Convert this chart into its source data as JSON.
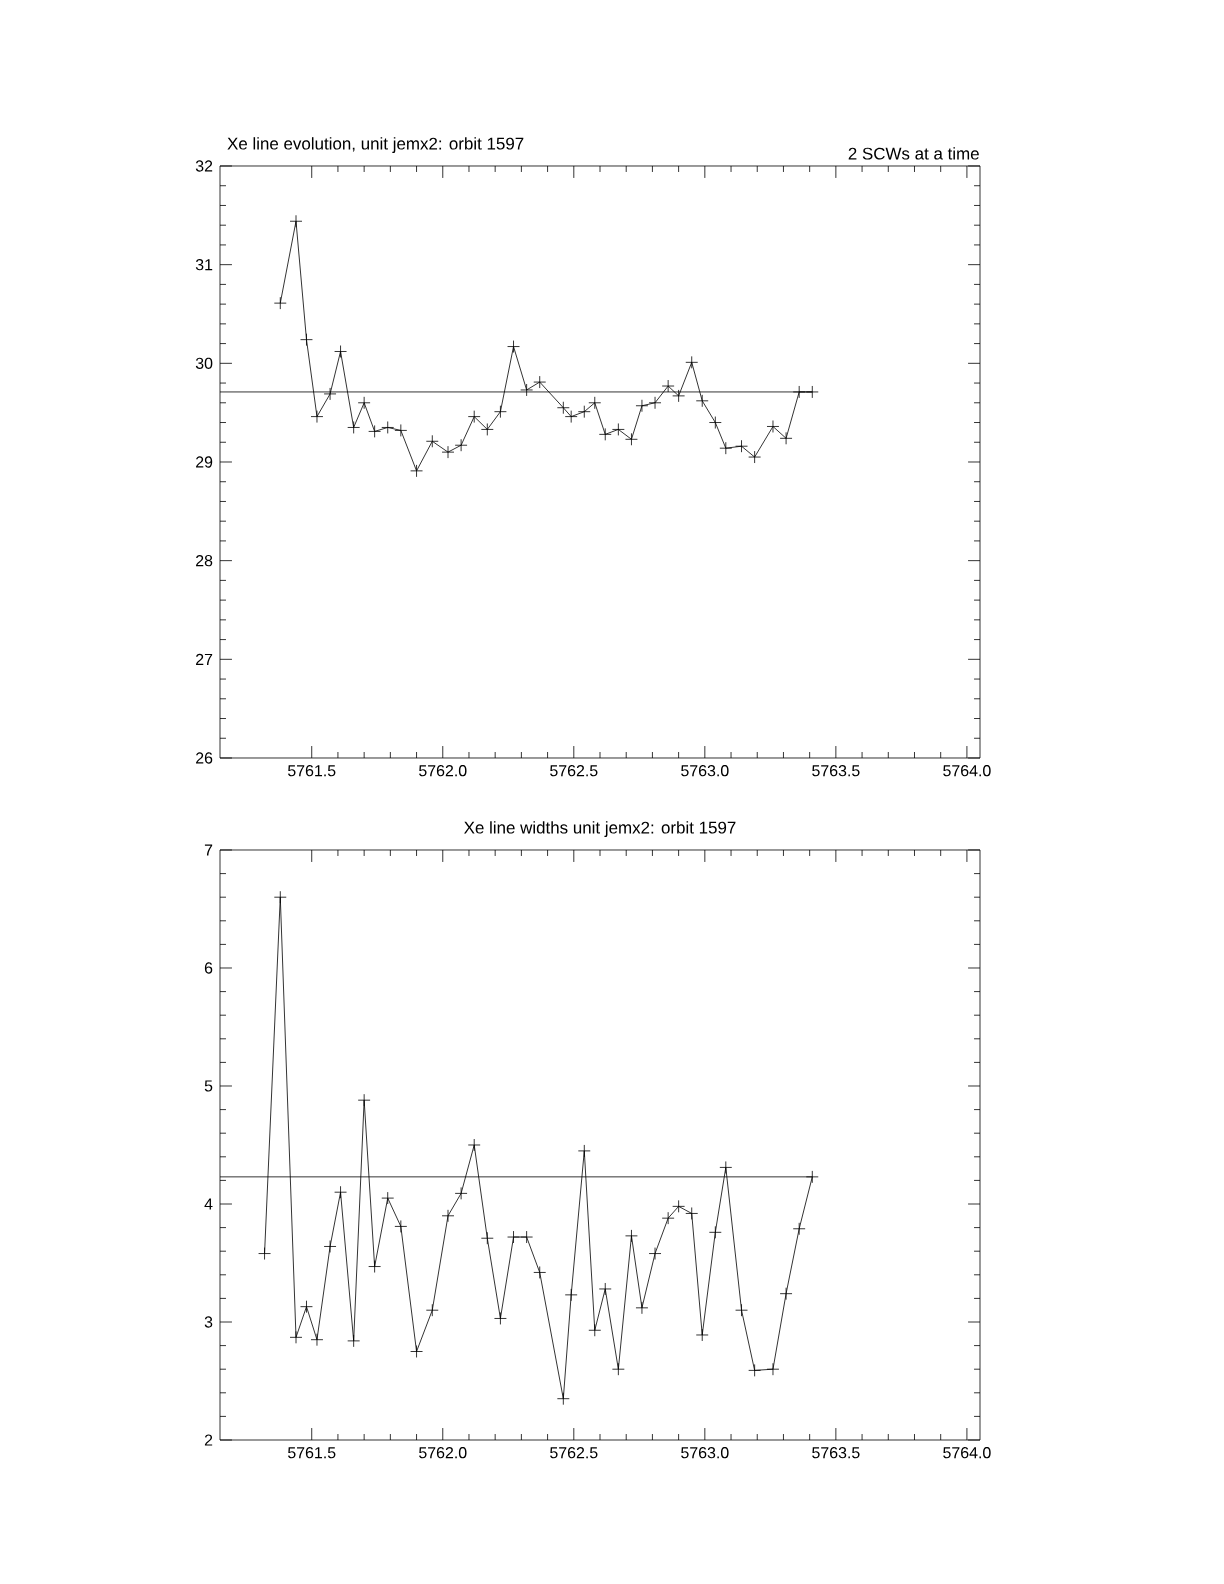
{
  "chart_data": [
    {
      "type": "line",
      "title": "Xe line evolution, unit jemx2: orbit 1597",
      "subtitle": "2 SCWs at a time",
      "x": [
        5761.38,
        5761.44,
        5761.48,
        5761.52,
        5761.57,
        5761.61,
        5761.66,
        5761.7,
        5761.74,
        5761.79,
        5761.84,
        5761.9,
        5761.96,
        5762.02,
        5762.07,
        5762.12,
        5762.17,
        5762.22,
        5762.27,
        5762.32,
        5762.37,
        5762.46,
        5762.49,
        5762.54,
        5762.58,
        5762.62,
        5762.67,
        5762.72,
        5762.76,
        5762.81,
        5762.86,
        5762.9,
        5762.95,
        5762.99,
        5763.04,
        5763.08,
        5763.14,
        5763.19,
        5763.26,
        5763.31,
        5763.36,
        5763.41
      ],
      "series": [
        {
          "color": "#000000",
          "values": [
            30.61,
            31.44,
            30.24,
            29.46,
            29.69,
            30.12,
            29.35,
            29.6,
            29.31,
            29.35,
            29.32,
            28.91,
            29.21,
            29.1,
            29.17,
            29.46,
            29.33,
            29.51,
            30.17,
            29.73,
            29.81,
            29.55,
            29.46,
            29.51,
            29.6,
            29.28,
            29.33,
            29.23,
            29.57,
            29.6,
            29.77,
            29.67,
            30.01,
            29.62,
            29.4,
            29.14,
            29.16,
            29.05,
            29.36,
            29.24,
            29.71,
            29.71
          ]
        }
      ],
      "marker": "cross",
      "line_style": "solid",
      "ref_lines": [
        {
          "axis": "y",
          "value": 29.71
        }
      ],
      "xlim": [
        5761.15,
        5764.05
      ],
      "ylim": [
        26,
        32
      ],
      "xticks": [
        {
          "value": 5761.5,
          "label": "5761.5"
        },
        {
          "value": 5762,
          "label": "5762.0"
        },
        {
          "value": 5762.5,
          "label": "5762.5"
        },
        {
          "value": 5763,
          "label": "5763.0"
        },
        {
          "value": 5763.5,
          "label": "5763.5"
        },
        {
          "value": 5764,
          "label": "5764.0"
        }
      ],
      "yticks": [
        26,
        27,
        28,
        29,
        30,
        31,
        32
      ]
    },
    {
      "type": "line",
      "title": "Xe line widths unit jemx2: orbit 1597",
      "x": [
        5761.32,
        5761.38,
        5761.44,
        5761.48,
        5761.52,
        5761.57,
        5761.61,
        5761.66,
        5761.7,
        5761.74,
        5761.79,
        5761.84,
        5761.9,
        5761.96,
        5762.02,
        5762.07,
        5762.12,
        5762.17,
        5762.22,
        5762.27,
        5762.32,
        5762.37,
        5762.46,
        5762.49,
        5762.54,
        5762.58,
        5762.62,
        5762.67,
        5762.72,
        5762.76,
        5762.81,
        5762.86,
        5762.9,
        5762.95,
        5762.99,
        5763.04,
        5763.08,
        5763.14,
        5763.19,
        5763.26,
        5763.31,
        5763.36,
        5763.41
      ],
      "series": [
        {
          "color": "#000000",
          "values": [
            3.58,
            6.6,
            2.87,
            3.13,
            2.85,
            3.64,
            4.1,
            2.84,
            4.88,
            3.47,
            4.05,
            3.81,
            2.75,
            3.1,
            3.9,
            4.09,
            4.5,
            3.71,
            3.03,
            3.72,
            3.72,
            3.42,
            2.35,
            3.23,
            4.45,
            2.93,
            3.28,
            2.6,
            3.73,
            3.12,
            3.58,
            3.88,
            3.98,
            3.92,
            2.89,
            3.76,
            4.31,
            3.1,
            2.59,
            2.6,
            3.24,
            3.79,
            4.23
          ]
        }
      ],
      "marker": "cross",
      "line_style": "solid",
      "ref_lines": [
        {
          "axis": "y",
          "value": 4.23
        }
      ],
      "xlim": [
        5761.15,
        5764.05
      ],
      "ylim": [
        2,
        7
      ],
      "xticks": [
        {
          "value": 5761.5,
          "label": "5761.5"
        },
        {
          "value": 5762,
          "label": "5762.0"
        },
        {
          "value": 5762.5,
          "label": "5762.5"
        },
        {
          "value": 5763,
          "label": "5763.0"
        },
        {
          "value": 5763.5,
          "label": "5763.5"
        },
        {
          "value": 5764,
          "label": "5764.0"
        }
      ],
      "yticks": [
        2,
        3,
        4,
        5,
        6,
        7
      ]
    }
  ]
}
